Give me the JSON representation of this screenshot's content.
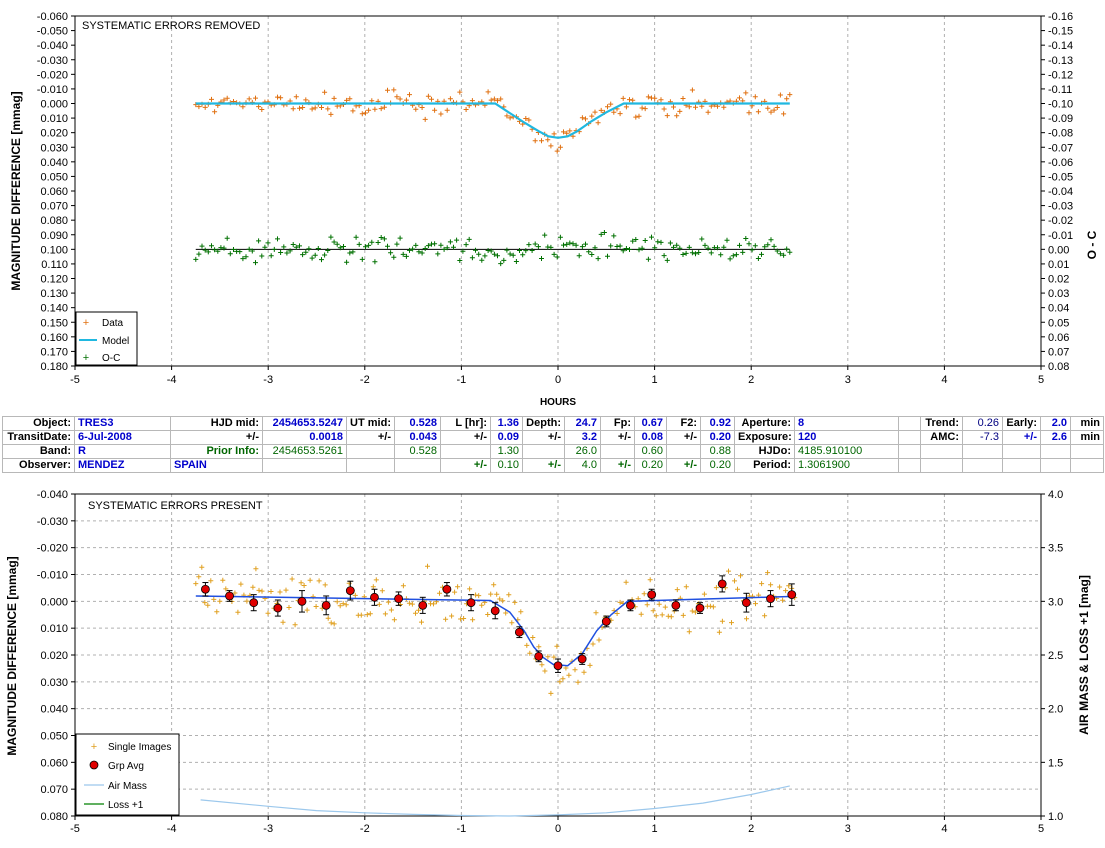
{
  "chart_data": [
    {
      "type": "scatter",
      "title": "SYSTEMATIC ERRORS REMOVED",
      "xlabel": "HOURS",
      "ylabel": "MAGNITUDE DIFFERENCE [mmag]",
      "y2label": "O - C",
      "xlim": [
        -5,
        5
      ],
      "ylim": [
        -0.06,
        0.18
      ],
      "y_inverted": true,
      "y2lim": [
        -0.16,
        0.08
      ],
      "grid": "vertical dashed",
      "legend_position": "bottom-left",
      "x_ticks": [
        "-5",
        "-4",
        "-3",
        "-2",
        "-1",
        "0",
        "1",
        "2",
        "3",
        "4",
        "5"
      ],
      "y_ticks": [
        "-0.060",
        "-0.050",
        "-0.040",
        "-0.030",
        "-0.020",
        "-0.010",
        "0.000",
        "0.010",
        "0.020",
        "0.030",
        "0.040",
        "0.050",
        "0.060",
        "0.070",
        "0.080",
        "0.090",
        "0.100",
        "0.110",
        "0.120",
        "0.130",
        "0.140",
        "0.150",
        "0.160",
        "0.170",
        "0.180"
      ],
      "y2_ticks": [
        "-0.16",
        "-0.15",
        "-0.14",
        "-0.13",
        "-0.12",
        "-0.11",
        "-0.10",
        "-0.09",
        "-0.08",
        "-0.07",
        "-0.06",
        "-0.05",
        "-0.04",
        "-0.03",
        "-0.02",
        "-0.01",
        "0.00",
        "0.01",
        "0.02",
        "0.03",
        "0.04",
        "0.05",
        "0.06",
        "0.07",
        "0.08"
      ],
      "x_range_data": [
        -3.75,
        2.4
      ],
      "series": [
        {
          "name": "Data",
          "color": "#e07010",
          "marker": "plus",
          "description": "single-image magnitudes, noise about 0.006 mag around model"
        },
        {
          "name": "Model",
          "color": "#20b8e0",
          "x": [
            -3.75,
            -0.65,
            -0.5,
            -0.35,
            -0.2,
            -0.1,
            0.0,
            0.1,
            0.2,
            0.35,
            0.5,
            0.68,
            2.4
          ],
          "y": [
            0.0,
            0.0,
            0.0065,
            0.013,
            0.019,
            0.0225,
            0.0235,
            0.0225,
            0.019,
            0.012,
            0.006,
            0.0,
            0.0
          ]
        },
        {
          "name": "O-C",
          "color": "#007000",
          "marker": "plus",
          "offset": 0.1,
          "description": "residuals plotted at 0.100, noise about 0.006 mag"
        }
      ],
      "reference_line": {
        "y": 0.1,
        "color": "#000000"
      }
    },
    {
      "type": "scatter",
      "title": "SYSTEMATIC ERRORS PRESENT",
      "ylabel": "MAGNITUDE DIFFERENCE [mmag]",
      "y2label": "AIR MASS & LOSS +1 [mag]",
      "xlim": [
        -5,
        5
      ],
      "ylim": [
        -0.04,
        0.08
      ],
      "y_inverted": true,
      "y2lim": [
        1.0,
        4.0
      ],
      "grid": "horizontal and vertical dashed",
      "legend_position": "bottom-left",
      "x_ticks": [
        "-5",
        "-4",
        "-3",
        "-2",
        "-1",
        "0",
        "1",
        "2",
        "3",
        "4",
        "5"
      ],
      "y_ticks": [
        "-0.040",
        "-0.030",
        "-0.020",
        "-0.010",
        "0.000",
        "0.010",
        "0.020",
        "0.030",
        "0.040",
        "0.050",
        "0.060",
        "0.070",
        "0.080"
      ],
      "y2_ticks": [
        "4.0",
        "3.5",
        "3.0",
        "2.5",
        "2.0",
        "1.5",
        "1.0"
      ],
      "series": [
        {
          "name": "Single Images",
          "color": "#e0a020",
          "marker": "plus"
        },
        {
          "name": "Grp Avg",
          "color": "#e00000",
          "marker": "circle",
          "x": [
            -3.65,
            -3.4,
            -3.15,
            -2.9,
            -2.65,
            -2.4,
            -2.15,
            -1.9,
            -1.65,
            -1.4,
            -1.15,
            -0.9,
            -0.65,
            -0.4,
            -0.2,
            0.0,
            0.25,
            0.5,
            0.75,
            0.97,
            1.22,
            1.47,
            1.7,
            1.95,
            2.2,
            2.42
          ],
          "y": [
            -0.0045,
            -0.002,
            0.0005,
            0.0025,
            0.0,
            0.0015,
            -0.004,
            -0.0015,
            -0.001,
            0.0015,
            -0.0045,
            0.0005,
            0.0035,
            0.0115,
            0.0205,
            0.024,
            0.0215,
            0.0075,
            0.0015,
            -0.0025,
            0.0015,
            0.0025,
            -0.0065,
            0.0005,
            -0.001,
            -0.0025
          ],
          "err": [
            0.0025,
            0.002,
            0.003,
            0.003,
            0.004,
            0.0035,
            0.0035,
            0.003,
            0.0025,
            0.003,
            0.0025,
            0.003,
            0.003,
            0.002,
            0.002,
            0.0025,
            0.002,
            0.002,
            0.002,
            0.002,
            0.002,
            0.002,
            0.003,
            0.0035,
            0.003,
            0.004
          ]
        },
        {
          "name": "Model",
          "color": "#2050e0",
          "x": [
            -3.75,
            -0.7,
            -0.5,
            -0.35,
            -0.25,
            -0.15,
            -0.05,
            0.1,
            0.25,
            0.4,
            0.55,
            0.72,
            2.4
          ],
          "y": [
            -0.002,
            -0.0003,
            0.004,
            0.011,
            0.017,
            0.021,
            0.0235,
            0.024,
            0.0195,
            0.011,
            0.005,
            0.0,
            -0.0018
          ]
        },
        {
          "name": "Air Mass",
          "color": "#9cc8ec",
          "x": [
            -3.7,
            -3.0,
            -2.5,
            -2.0,
            -1.5,
            -1.0,
            -0.5,
            0.0,
            0.5,
            1.0,
            1.5,
            2.0,
            2.4
          ],
          "y2": [
            1.15,
            1.09,
            1.05,
            1.03,
            1.015,
            1.005,
            1.0,
            1.01,
            1.03,
            1.07,
            1.12,
            1.2,
            1.28
          ]
        },
        {
          "name": "Loss +1",
          "color": "#008000"
        }
      ]
    }
  ],
  "info_table": {
    "rows": [
      [
        "Object:",
        "TRES3",
        "HJD mid:",
        "2454653.5247",
        "UT mid:",
        "0.528",
        "L [hr]:",
        "1.36",
        "Depth:",
        "24.7",
        "Fp:",
        "0.67",
        "F2:",
        "0.92",
        "Aperture:",
        "8",
        "",
        "Trend:",
        "0.26",
        "Early:",
        "2.0",
        "min"
      ],
      [
        "TransitDate:",
        "6-Jul-2008",
        "+/-",
        "0.0018",
        "+/-",
        "0.043",
        "+/-",
        "0.09",
        "+/-",
        "3.2",
        "+/-",
        "0.08",
        "+/-",
        "0.20",
        "Exposure:",
        "120",
        "",
        "AMC:",
        "-7.3",
        "+/-",
        "2.6",
        "min"
      ],
      [
        "Band:",
        "R",
        "Prior Info:",
        "2454653.5261",
        "",
        "0.528",
        "",
        "1.30",
        "",
        "26.0",
        "",
        "0.60",
        "",
        "0.88",
        "HJDo:",
        "4185.910100",
        "",
        "",
        "",
        "",
        "",
        ""
      ],
      [
        "Observer:",
        "MENDEZ",
        "SPAIN",
        "",
        "",
        "",
        "+/-",
        "0.10",
        "+/-",
        "4.0",
        "+/-",
        "0.20",
        "+/-",
        "0.20",
        "Period:",
        "1.3061900",
        "",
        "",
        "",
        "",
        "",
        ""
      ]
    ]
  }
}
